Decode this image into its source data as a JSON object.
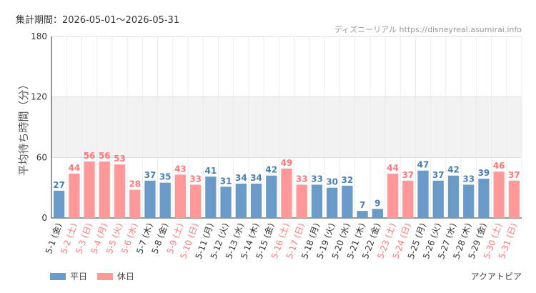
{
  "header": {
    "period": "集計期間：2026-05-01～2026-05-31",
    "credit": "ディズニーリアル https://disneyreal.asumirai.info"
  },
  "footer": {
    "attraction": "アクアトピア"
  },
  "colors": {
    "weekday": "#6a9bc8",
    "holiday": "#ff9999",
    "weekday_label": "#4a7fb5",
    "holiday_label": "#ff7777",
    "band": "#f2f2f2"
  },
  "chart_data": {
    "type": "bar",
    "ylabel": "平均待ち時間（分）",
    "ylim": [
      0,
      180
    ],
    "yticks": [
      0,
      60,
      120,
      180
    ],
    "band": [
      60,
      120
    ],
    "grid": true,
    "legend": {
      "placement": "bottom-left",
      "entries": [
        {
          "name": "平日",
          "kind": "weekday"
        },
        {
          "name": "休日",
          "kind": "holiday"
        }
      ]
    },
    "categories": [
      "5-1 (金)",
      "5-2 (土)",
      "5-3 (日)",
      "5-4 (月)",
      "5-5 (火)",
      "5-6 (水)",
      "5-7 (木)",
      "5-8 (金)",
      "5-9 (土)",
      "5-10 (日)",
      "5-11 (月)",
      "5-12 (火)",
      "5-13 (水)",
      "5-14 (木)",
      "5-15 (金)",
      "5-16 (土)",
      "5-17 (日)",
      "5-18 (月)",
      "5-19 (火)",
      "5-20 (水)",
      "5-21 (木)",
      "5-22 (金)",
      "5-23 (土)",
      "5-24 (日)",
      "5-25 (月)",
      "5-26 (火)",
      "5-27 (水)",
      "5-28 (木)",
      "5-29 (金)",
      "5-30 (土)",
      "5-31 (日)"
    ],
    "values": [
      27,
      44,
      56,
      56,
      53,
      28,
      37,
      35,
      43,
      33,
      41,
      31,
      34,
      34,
      42,
      49,
      33,
      33,
      30,
      32,
      7,
      9,
      44,
      37,
      47,
      37,
      42,
      33,
      39,
      46,
      37
    ],
    "day_type": [
      "weekday",
      "holiday",
      "holiday",
      "holiday",
      "holiday",
      "holiday",
      "weekday",
      "weekday",
      "holiday",
      "holiday",
      "weekday",
      "weekday",
      "weekday",
      "weekday",
      "weekday",
      "holiday",
      "holiday",
      "weekday",
      "weekday",
      "weekday",
      "weekday",
      "weekday",
      "holiday",
      "holiday",
      "weekday",
      "weekday",
      "weekday",
      "weekday",
      "weekday",
      "holiday",
      "holiday"
    ]
  }
}
